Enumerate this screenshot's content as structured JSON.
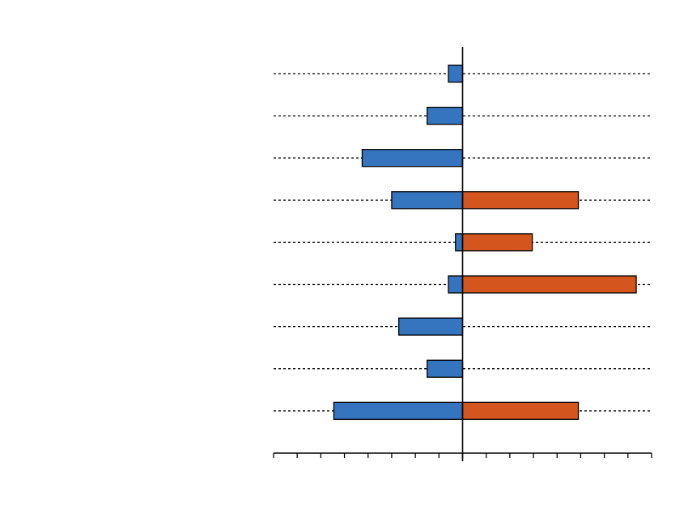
{
  "chart_data": {
    "type": "bar",
    "orientation": "horizontal",
    "stacking": "diverging",
    "title": "",
    "xlabel": "",
    "ylabel": "",
    "xlim": [
      -8,
      8
    ],
    "x_tick_step": 1,
    "grid": "horizontal-dotted",
    "legend": "none",
    "categories": [
      "",
      "",
      "",
      "",
      "",
      "",
      "",
      "",
      ""
    ],
    "series": [
      {
        "color": "#3574BE",
        "values": [
          -0.6,
          -1.5,
          -4.25,
          -3.0,
          -0.3,
          -0.6,
          -2.7,
          -1.5,
          -5.45
        ]
      },
      {
        "color": "#D4561E",
        "values": [
          0,
          0,
          0,
          4.9,
          2.95,
          7.35,
          0,
          0,
          4.9
        ]
      }
    ]
  }
}
